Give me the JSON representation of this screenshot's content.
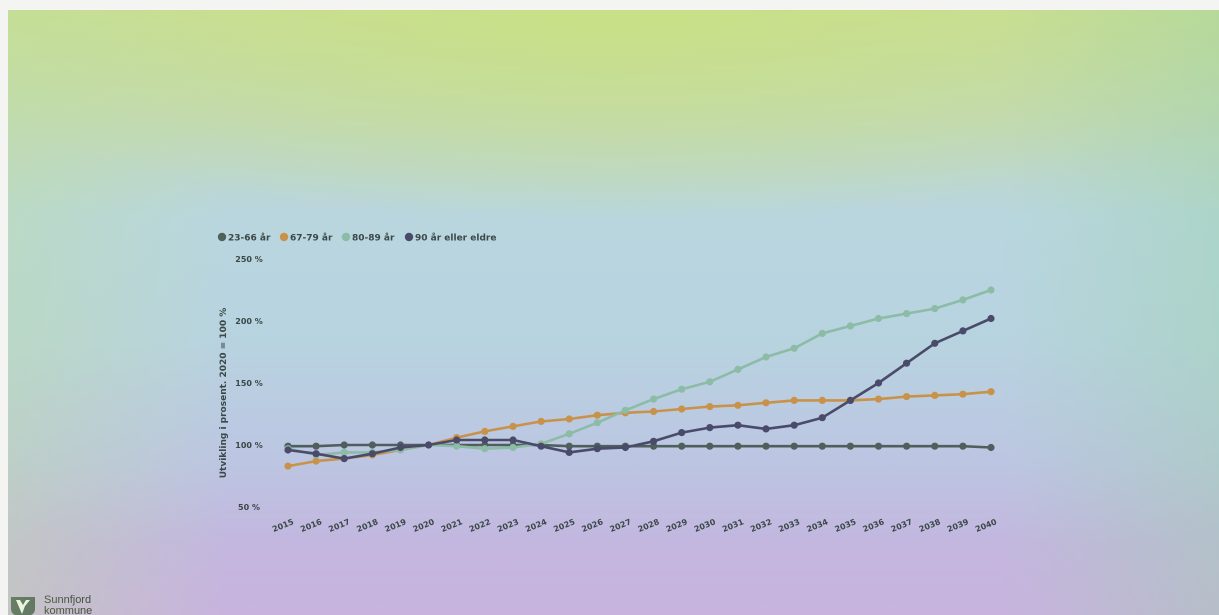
{
  "brand": {
    "name": "Sunnfjord",
    "sub": "kommune",
    "colors": {
      "emblem_dark": "#3a4a4c",
      "emblem_light": "#ffffff"
    }
  },
  "chart_data": {
    "type": "line",
    "title": "",
    "xlabel": "",
    "ylabel": "Utvikling i prosent. 2020 = 100 %",
    "ylim": [
      50,
      250
    ],
    "yticks": [
      50,
      100,
      150,
      200,
      250
    ],
    "ytick_labels": [
      "50 %",
      "100 %",
      "150 %",
      "200 %",
      "250 %"
    ],
    "grid": false,
    "legend_position": "top-left",
    "x": [
      "2015",
      "2016",
      "2017",
      "2018",
      "2019",
      "2020",
      "2021",
      "2022",
      "2023",
      "2024",
      "2025",
      "2026",
      "2027",
      "2028",
      "2029",
      "2030",
      "2031",
      "2032",
      "2033",
      "2034",
      "2035",
      "2036",
      "2037",
      "2038",
      "2039",
      "2040"
    ],
    "series": [
      {
        "name": "23-66 år",
        "color": "#4f5f5b",
        "values": [
          99,
          99,
          100,
          100,
          100,
          100,
          100,
          100,
          100,
          100,
          99,
          99,
          99,
          99,
          99,
          99,
          99,
          99,
          99,
          99,
          99,
          99,
          99,
          99,
          99,
          98
        ]
      },
      {
        "name": "67-79 år",
        "color": "#c9924a",
        "values": [
          83,
          87,
          89,
          92,
          96,
          100,
          106,
          111,
          115,
          119,
          121,
          124,
          126,
          127,
          129,
          131,
          132,
          134,
          136,
          136,
          136,
          137,
          139,
          140,
          141,
          143
        ]
      },
      {
        "name": "80-89 år",
        "color": "#8cbba6",
        "values": [
          97,
          92,
          94,
          94,
          96,
          100,
          99,
          97,
          98,
          101,
          109,
          118,
          128,
          137,
          145,
          151,
          161,
          171,
          178,
          190,
          196,
          202,
          206,
          210,
          217,
          225
        ]
      },
      {
        "name": "90 år eller eldre",
        "color": "#4a4a6a",
        "values": [
          96,
          93,
          89,
          93,
          98,
          100,
          104,
          104,
          104,
          99,
          94,
          97,
          98,
          103,
          110,
          114,
          116,
          113,
          116,
          122,
          136,
          150,
          166,
          182,
          192,
          202
        ]
      }
    ]
  }
}
